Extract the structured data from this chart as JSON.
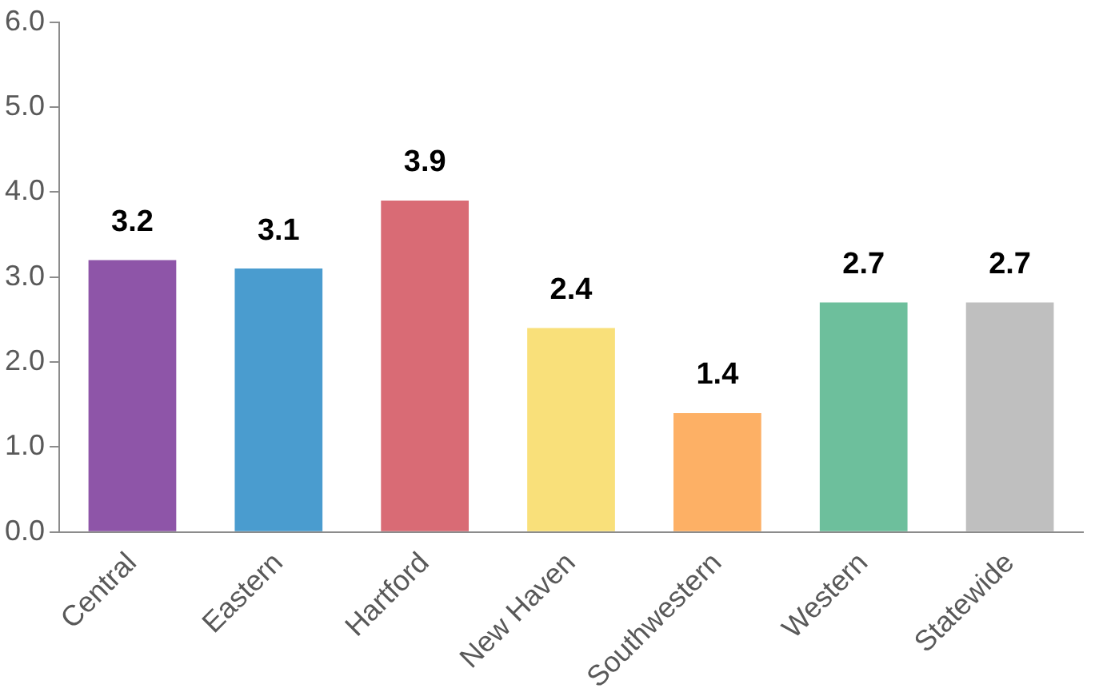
{
  "chart_data": {
    "type": "bar",
    "categories": [
      "Central",
      "Eastern",
      "Hartford",
      "New Haven",
      "Southwestern",
      "Western",
      "Statewide"
    ],
    "values": [
      3.2,
      3.1,
      3.9,
      2.4,
      1.4,
      2.7,
      2.7
    ],
    "colors": [
      "#8e55a8",
      "#4a9ccf",
      "#d96b75",
      "#f9e07a",
      "#fdb065",
      "#6dbf9c",
      "#bfbfbf"
    ],
    "ylim": [
      0,
      6
    ],
    "yticks": [
      {
        "value": 0,
        "label": "0.0"
      },
      {
        "value": 1,
        "label": "1.0"
      },
      {
        "value": 2,
        "label": "2.0"
      },
      {
        "value": 3,
        "label": "3.0"
      },
      {
        "value": 4,
        "label": "4.0"
      },
      {
        "value": 5,
        "label": "5.0"
      },
      {
        "value": 6,
        "label": "6.0"
      }
    ],
    "grid": false,
    "data_labels": true
  }
}
